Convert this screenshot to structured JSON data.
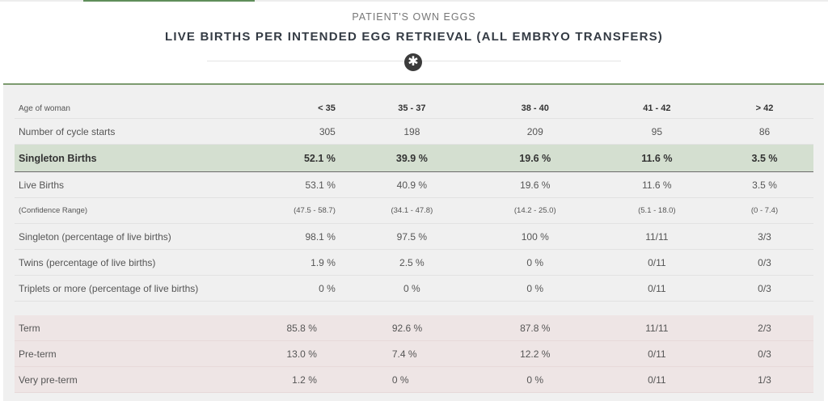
{
  "header": {
    "eyebrow": "PATIENT'S OWN EGGS",
    "title": "LIVE BIRTHS PER INTENDED EGG RETRIEVAL (ALL EMBRYO TRANSFERS)",
    "badge_icon": "asterisk-icon",
    "accent_color": "#7d9b6f"
  },
  "table": {
    "age_label": "Age of woman",
    "ages": [
      "< 35",
      "35 - 37",
      "38 - 40",
      "41 - 42",
      "> 42"
    ],
    "cycles": {
      "label": "Number of cycle starts",
      "values": [
        "305",
        "198",
        "209",
        "95",
        "86"
      ]
    },
    "singleton_births": {
      "label": "Singleton Births",
      "values": [
        "52.1 %",
        "39.9 %",
        "19.6 %",
        "11.6 %",
        "3.5 %"
      ]
    },
    "live_births": {
      "label": "Live Births",
      "values": [
        "53.1 %",
        "40.9 %",
        "19.6 %",
        "11.6 %",
        "3.5 %"
      ]
    },
    "confidence": {
      "label": "(Confidence Range)",
      "values": [
        "(47.5 - 58.7)",
        "(34.1 - 47.8)",
        "(14.2 - 25.0)",
        "(5.1 - 18.0)",
        "(0 - 7.4)"
      ]
    },
    "singleton_pct": {
      "label": "Singleton (percentage of live births)",
      "values": [
        "98.1 %",
        "97.5 %",
        "100 %",
        "11/11",
        "3/3"
      ]
    },
    "twins_pct": {
      "label": "Twins (percentage of live births)",
      "values": [
        "1.9 %",
        "2.5 %",
        "0 %",
        "0/11",
        "0/3"
      ]
    },
    "triplets_pct": {
      "label": "Triplets or more (percentage of live births)",
      "values": [
        "0 %",
        "0 %",
        "0 %",
        "0/11",
        "0/3"
      ]
    },
    "term": {
      "label": "Term",
      "values": [
        "85.8 %",
        "92.6 %",
        "87.8 %",
        "11/11",
        "2/3"
      ]
    },
    "preterm": {
      "label": "Pre-term",
      "values": [
        "13.0 %",
        "7.4 %",
        "12.2 %",
        "0/11",
        "0/3"
      ]
    },
    "very_preterm": {
      "label": "Very pre-term",
      "values": [
        "1.2 %",
        "0 %",
        "0 %",
        "0/11",
        "1/3"
      ]
    }
  }
}
